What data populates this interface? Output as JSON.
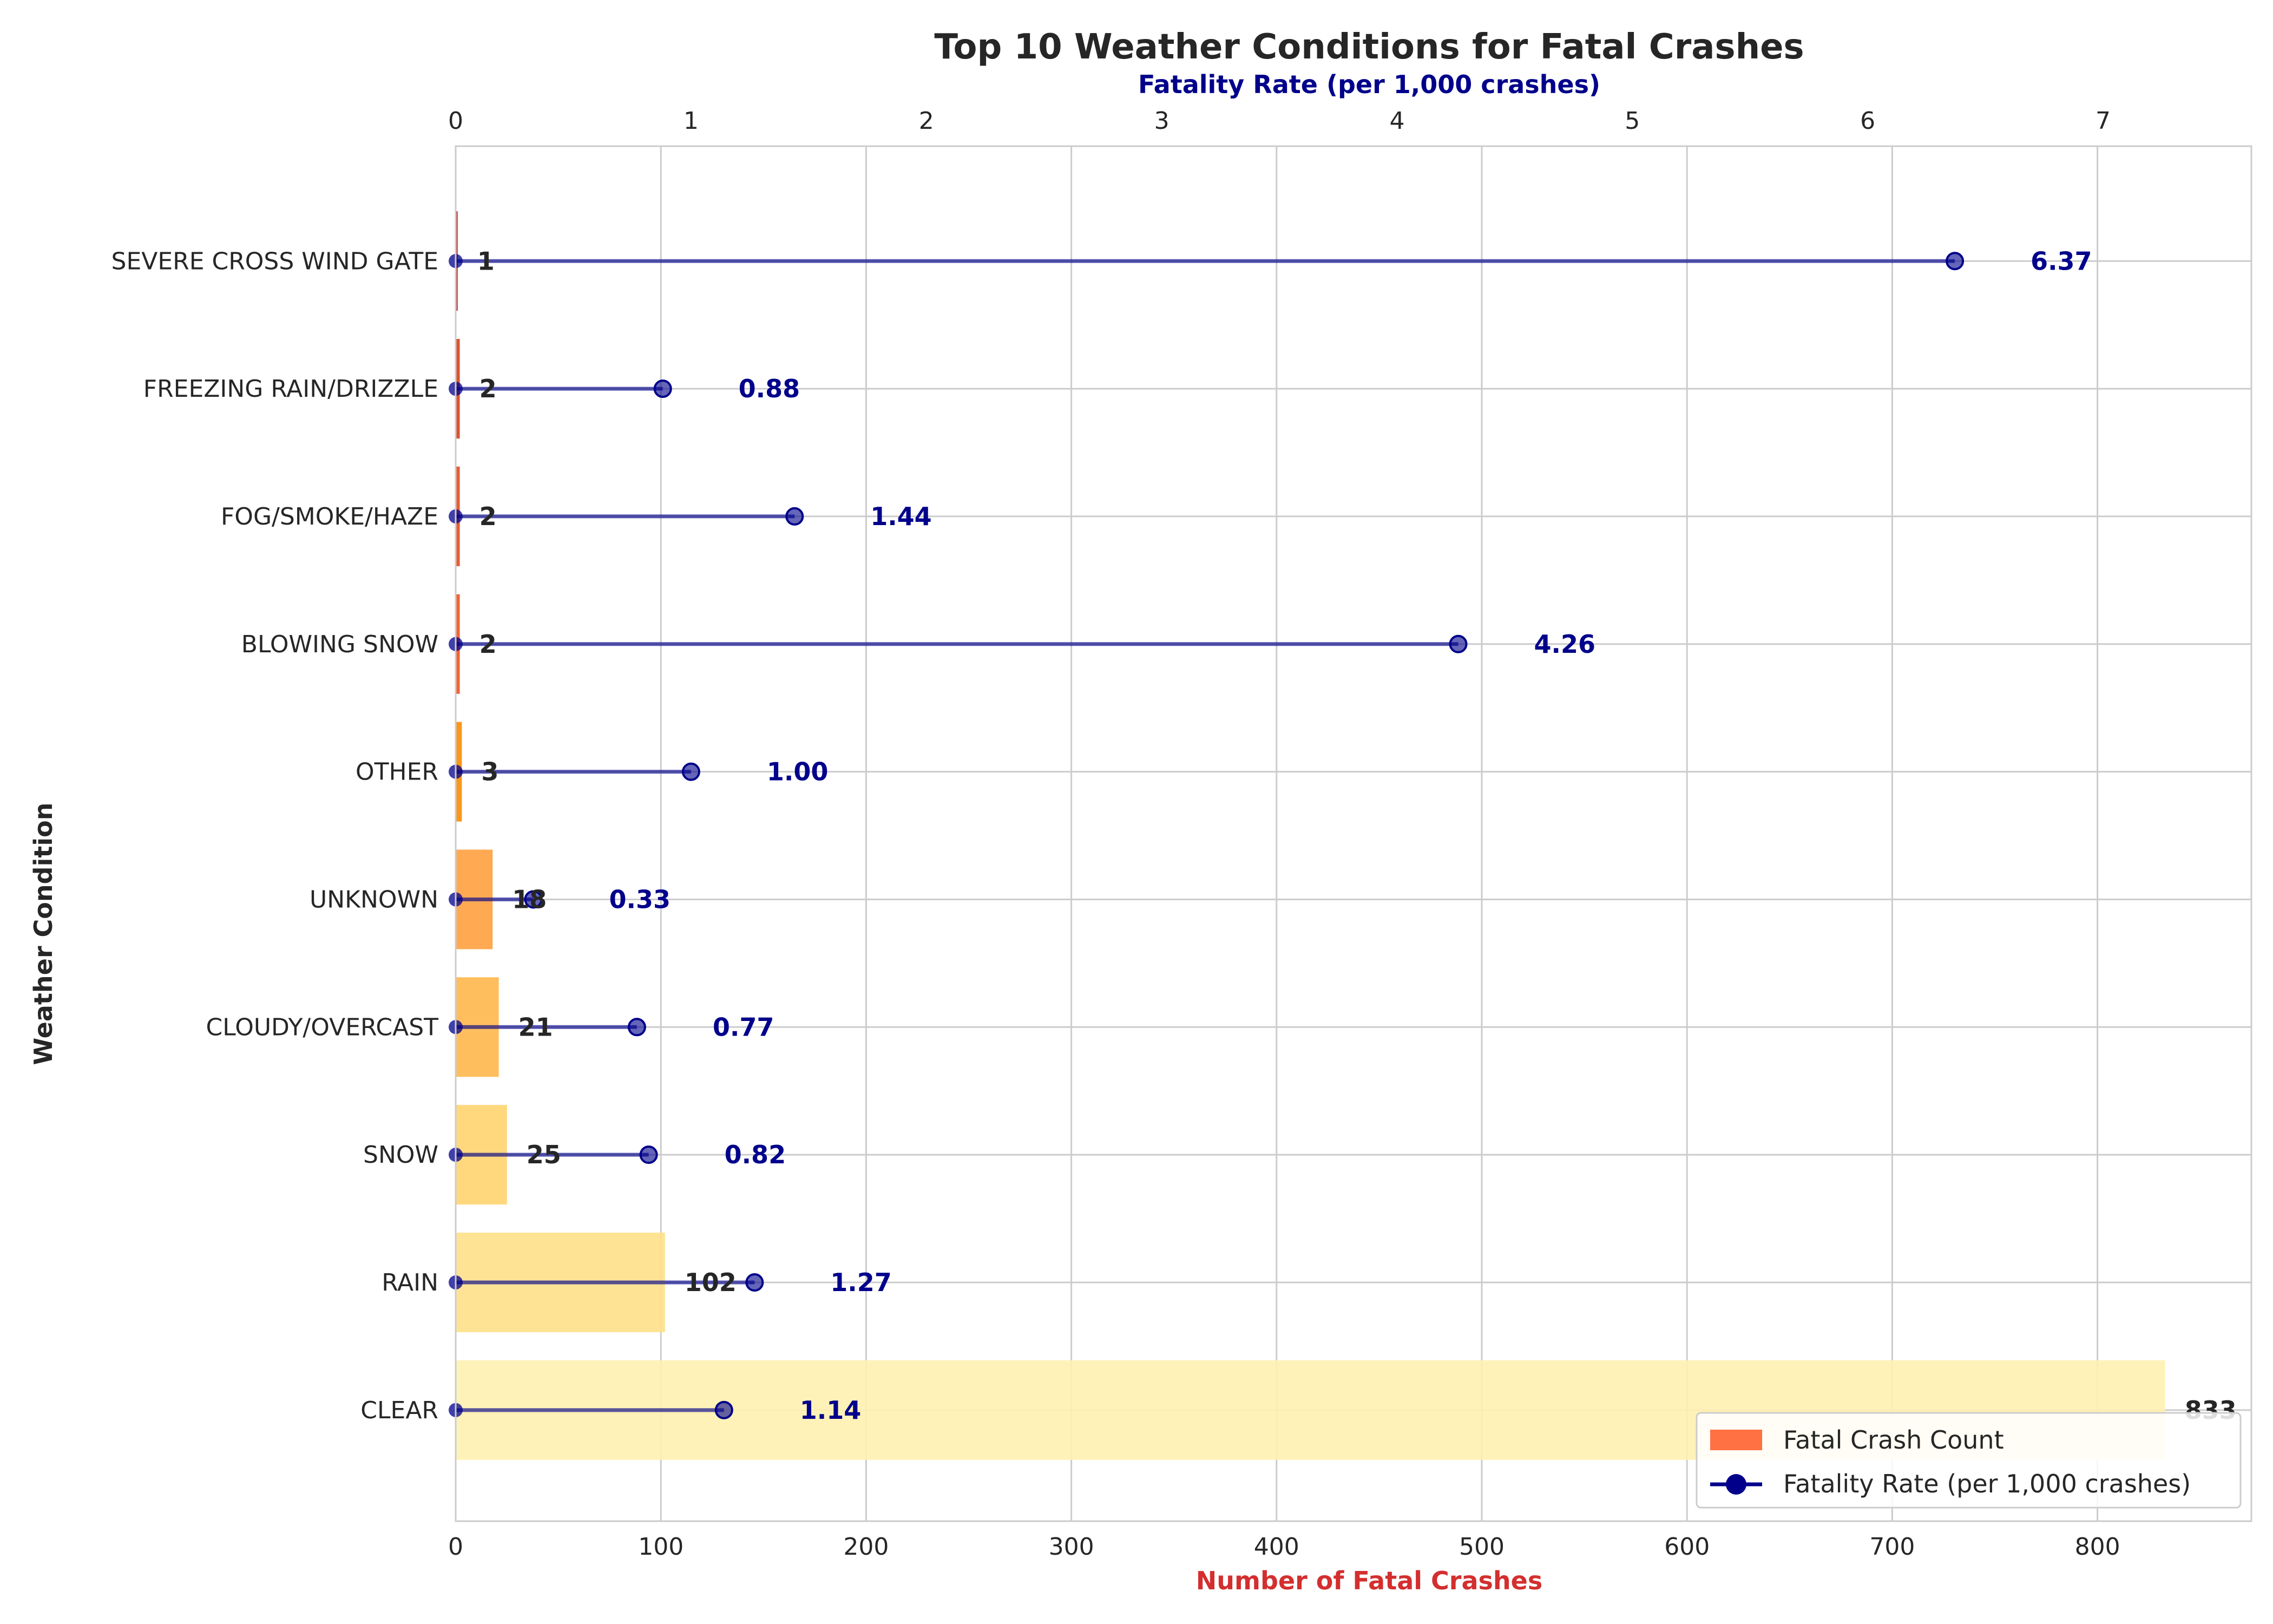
{
  "chart_data": {
    "type": "bar",
    "title": "Top 10 Weather Conditions for Fatal Crashes",
    "xlabel": "Number of Fatal Crashes",
    "x2label": "Fatality Rate (per 1,000 crashes)",
    "ylabel": "Weather Condition",
    "categories": [
      "SEVERE CROSS WIND GATE",
      "FREEZING RAIN/DRIZZLE",
      "FOG/SMOKE/HAZE",
      "BLOWING SNOW",
      "OTHER",
      "UNKNOWN",
      "CLOUDY/OVERCAST",
      "SNOW",
      "RAIN",
      "CLEAR"
    ],
    "series": [
      {
        "name": "Fatal Crash Count",
        "type": "bar",
        "axis": "bottom",
        "values": [
          1,
          2,
          2,
          2,
          3,
          18,
          21,
          25,
          102,
          833
        ],
        "labels": [
          "1",
          "2",
          "2",
          "2",
          "3",
          "18",
          "21",
          "25",
          "102",
          "833"
        ],
        "colors": [
          "#c62828",
          "#d84315",
          "#e64a19",
          "#f4511e",
          "#fb8c00",
          "#ffa040",
          "#ffb74d",
          "#ffd470",
          "#ffe08a",
          "#fff1b0"
        ]
      },
      {
        "name": "Fatality Rate (per 1,000 crashes)",
        "type": "lollipop",
        "axis": "top",
        "values": [
          6.37,
          0.88,
          1.44,
          4.26,
          1.0,
          0.33,
          0.77,
          0.82,
          1.27,
          1.14
        ],
        "labels": [
          "6.37",
          "0.88",
          "1.44",
          "4.26",
          "1.00",
          "0.33",
          "0.77",
          "0.82",
          "1.27",
          "1.14"
        ],
        "color": "#00008b"
      }
    ],
    "xlim": [
      0,
      875
    ],
    "x2lim": [
      0,
      7.63
    ],
    "xticks": [
      "0",
      "100",
      "200",
      "300",
      "400",
      "500",
      "600",
      "700",
      "800"
    ],
    "xtick_values": [
      0,
      100,
      200,
      300,
      400,
      500,
      600,
      700,
      800
    ],
    "x2ticks": [
      "0",
      "1",
      "2",
      "3",
      "4",
      "5",
      "6",
      "7"
    ],
    "x2tick_values": [
      0,
      1,
      2,
      3,
      4,
      5,
      6,
      7
    ],
    "grid": true,
    "legend": {
      "position": "bottom-right",
      "entries": [
        "Fatal Crash Count",
        "Fatality Rate (per 1,000 crashes)"
      ]
    }
  }
}
